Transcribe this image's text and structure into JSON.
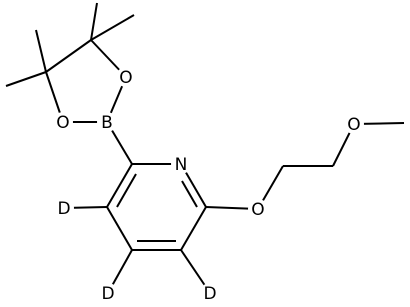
{
  "atoms": [
    "N",
    "O",
    "O",
    "B",
    "O",
    "O",
    "D",
    "D",
    "D"
  ]
}
